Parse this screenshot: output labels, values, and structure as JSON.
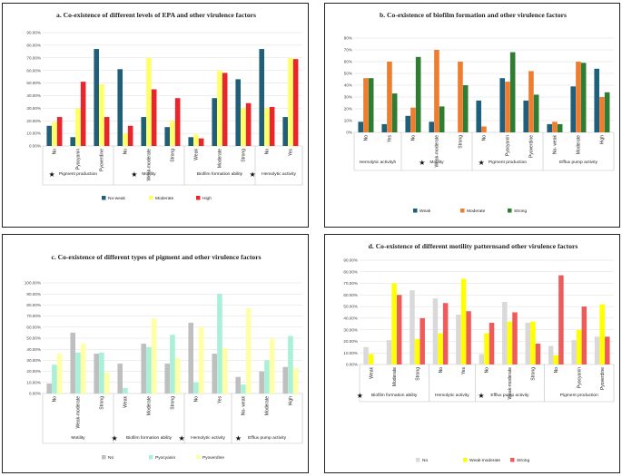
{
  "chart_data": [
    {
      "id": "a",
      "type": "bar",
      "title": "a. Co-existence of different levels of EPA and other virulence factors",
      "ylim": [
        0,
        0.9
      ],
      "yticks": [
        "0.00%",
        "10.00%",
        "20.00%",
        "30.00%",
        "40.00%",
        "50.00%",
        "60.00%",
        "70.00%",
        "80.00%",
        "90.00%"
      ],
      "grid": true,
      "legend_position": "bottom",
      "groups": [
        {
          "label": "Pigment production",
          "starred": true,
          "categories": [
            "No",
            "Pyocyanin",
            "Pyoverdine"
          ]
        },
        {
          "label": "Motility",
          "starred": true,
          "categories": [
            "No",
            "Weak-moderate",
            "Strong"
          ]
        },
        {
          "label": "Biofilm formation ability",
          "starred": false,
          "categories": [
            "Weak",
            "Moderate",
            "Strong"
          ]
        },
        {
          "label": "Hemolytic activity",
          "starred": true,
          "categories": [
            "No",
            "Yes"
          ]
        }
      ],
      "series": [
        {
          "name": "No-weak",
          "color": "#1f5f7a",
          "values": [
            0.16,
            0.07,
            0.77,
            0.61,
            0.23,
            0.15,
            0.07,
            0.38,
            0.53,
            0.77,
            0.23
          ]
        },
        {
          "name": "Moderate",
          "color": "#ffff66",
          "values": [
            0.19,
            0.3,
            0.49,
            0.1,
            0.7,
            0.2,
            0.09,
            0.6,
            0.3,
            0.3,
            0.7
          ]
        },
        {
          "name": "High",
          "color": "#e8262b",
          "values": [
            0.23,
            0.51,
            0.23,
            0.16,
            0.45,
            0.38,
            0.06,
            0.58,
            0.34,
            0.31,
            0.69
          ]
        }
      ]
    },
    {
      "id": "b",
      "type": "bar",
      "title": "b. Co-existence of biofilm formation and other virulence factors",
      "ylim": [
        0,
        0.8
      ],
      "yticks": [
        "0%",
        "10%",
        "20%",
        "30%",
        "40%",
        "50%",
        "60%",
        "70%",
        "80%"
      ],
      "grid": true,
      "legend_position": "bottom",
      "groups": [
        {
          "label": "Hemolytic activityh",
          "starred": false,
          "categories": [
            "No",
            "Yes"
          ]
        },
        {
          "label": "Motility",
          "starred": true,
          "categories": [
            "No",
            "Weak-moderate",
            "Strong"
          ]
        },
        {
          "label": "Pigment production",
          "starred": true,
          "categories": [
            "No",
            "Pyocyanin",
            "Pyoverdine"
          ]
        },
        {
          "label": "Efflux pump activity",
          "starred": false,
          "categories": [
            "No- weak",
            "Moderate",
            "High"
          ]
        }
      ],
      "series": [
        {
          "name": "Weak",
          "color": "#1f5f7a",
          "values": [
            0.09,
            0.07,
            0.14,
            0.09,
            0.0,
            0.27,
            0.46,
            0.27,
            0.07,
            0.39,
            0.54
          ]
        },
        {
          "name": "Moderate",
          "color": "#ed7d31",
          "values": [
            0.46,
            0.6,
            0.21,
            0.7,
            0.6,
            0.05,
            0.43,
            0.52,
            0.09,
            0.6,
            0.3
          ]
        },
        {
          "name": "Strong",
          "color": "#2e7d32",
          "values": [
            0.46,
            0.33,
            0.64,
            0.22,
            0.4,
            0.0,
            0.68,
            0.32,
            0.07,
            0.59,
            0.34
          ]
        }
      ]
    },
    {
      "id": "c",
      "type": "bar",
      "title": "c. Co-existence of different types of pigment and other virulence factors",
      "ylim": [
        0,
        1.0
      ],
      "yticks": [
        "0.00%",
        "10.00%",
        "20.00%",
        "30.00%",
        "40.00%",
        "50.00%",
        "60.00%",
        "70.00%",
        "80.00%",
        "90.00%",
        "100.00%"
      ],
      "grid": true,
      "legend_position": "bottom",
      "groups": [
        {
          "label": "Motility",
          "starred": false,
          "categories": [
            "No",
            "Weak-moderate",
            "Strong"
          ]
        },
        {
          "label": "Biofilm formation ability",
          "starred": true,
          "categories": [
            "Weak",
            "Moderate",
            "Strong"
          ]
        },
        {
          "label": "Hemolytic activity",
          "starred": true,
          "categories": [
            "No",
            "Yes"
          ]
        },
        {
          "label": "Efflux pump activity",
          "starred": true,
          "categories": [
            "No- weak",
            "Moderate",
            "High"
          ]
        }
      ],
      "series": [
        {
          "name": "No",
          "color": "#bfbfbf",
          "values": [
            0.09,
            0.55,
            0.36,
            0.27,
            0.45,
            0.27,
            0.64,
            0.36,
            0.15,
            0.2,
            0.24
          ]
        },
        {
          "name": "Pyocyanin",
          "color": "#a8f0d8",
          "values": [
            0.26,
            0.37,
            0.37,
            0.05,
            0.42,
            0.53,
            0.1,
            0.9,
            0.08,
            0.3,
            0.52
          ]
        },
        {
          "name": "Pyoverdine",
          "color": "#ffffa8",
          "values": [
            0.36,
            0.45,
            0.19,
            0.0,
            0.68,
            0.32,
            0.6,
            0.41,
            0.77,
            0.5,
            0.23
          ]
        }
      ]
    },
    {
      "id": "d",
      "type": "bar",
      "title": "d. Co-existence of different motility patternsand other virulence factors",
      "ylim": [
        0,
        0.9
      ],
      "yticks": [
        "0.00%",
        "10.00%",
        "20.00%",
        "30.00%",
        "40.00%",
        "50.00%",
        "60.00%",
        "70.00%",
        "80.00%",
        "90.00%"
      ],
      "grid": true,
      "legend_position": "bottom",
      "groups": [
        {
          "label": "Biofilm formation ability",
          "starred": true,
          "categories": [
            "Weak",
            "Moderate",
            "Strong"
          ]
        },
        {
          "label": "Hemolytic activity",
          "starred": false,
          "categories": [
            "No",
            "Yes"
          ]
        },
        {
          "label": "Efflux pump activity",
          "starred": true,
          "categories": [
            "No",
            "Weak-moderate",
            "Strong"
          ]
        },
        {
          "label": "Pigment production",
          "starred": false,
          "categories": [
            "No",
            "Pyocyanin",
            "Pyoverdine"
          ]
        }
      ],
      "series": [
        {
          "name": "No",
          "color": "#d9d9d9",
          "values": [
            0.15,
            0.21,
            0.64,
            0.57,
            0.43,
            0.09,
            0.54,
            0.36,
            0.16,
            0.21,
            0.24
          ]
        },
        {
          "name": "Weak-moderate",
          "color": "#ffff00",
          "values": [
            0.09,
            0.7,
            0.22,
            0.27,
            0.74,
            0.27,
            0.37,
            0.37,
            0.08,
            0.3,
            0.52
          ]
        },
        {
          "name": "Strong",
          "color": "#ef5b5b",
          "values": [
            0.0,
            0.6,
            0.4,
            0.53,
            0.46,
            0.36,
            0.45,
            0.18,
            0.77,
            0.5,
            0.24
          ]
        }
      ]
    }
  ]
}
